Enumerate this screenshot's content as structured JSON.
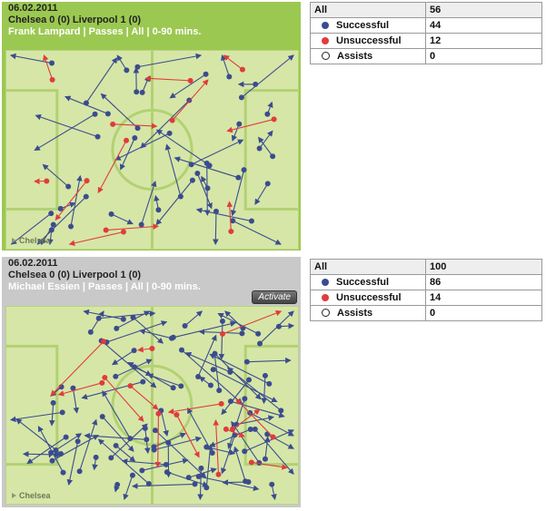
{
  "panels": [
    {
      "date": "06.02.2011",
      "match": "Chelsea 0 (0) Liverpool 1 (0)",
      "player_line": "Frank Lampard | Passes | All | 0-90 mins.",
      "team_label": "Chelsea",
      "stats": {
        "all_label": "All",
        "all_value": "56",
        "successful_label": "Successful",
        "successful_value": "44",
        "unsuccessful_label": "Unsuccessful",
        "unsuccessful_value": "12",
        "assists_label": "Assists",
        "assists_value": "0"
      }
    },
    {
      "date": "06.02.2011",
      "match": "Chelsea 0 (0) Liverpool 1 (0)",
      "player_line": "Michael Essien | Passes | All | 0-90 mins.",
      "team_label": "Chelsea",
      "activate_label": "Activate",
      "stats": {
        "all_label": "All",
        "all_value": "100",
        "successful_label": "Successful",
        "successful_value": "86",
        "unsuccessful_label": "Unsuccessful",
        "unsuccessful_value": "14",
        "assists_label": "Assists",
        "assists_value": "0"
      }
    }
  ],
  "colors": {
    "successful": "#3b4c8e",
    "unsuccessful": "#e03c3c",
    "pitch": "#d6e6a7",
    "lines": "#b2d173"
  },
  "icons": {
    "successful": "blue-dot-icon",
    "unsuccessful": "red-dot-icon",
    "assists": "white-dot-icon",
    "team_arrow": "triangle-right-icon"
  }
}
